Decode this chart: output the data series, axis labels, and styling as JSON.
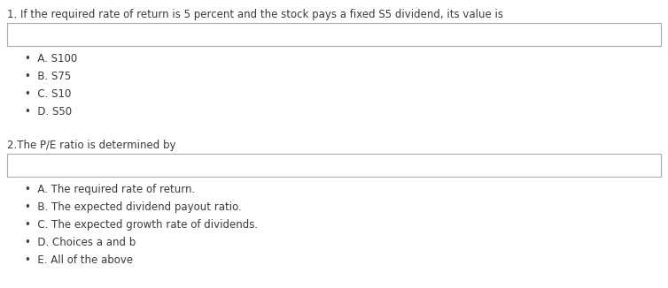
{
  "bg_color": "#ffffff",
  "text_color": "#3a3a3a",
  "box_color": "#ffffff",
  "box_edge_color": "#aaaaaa",
  "q1_text": "1. If the required rate of return is 5 percent and the stock pays a fixed S5 dividend, its value is",
  "q1_options": [
    "A. S100",
    "B. S75",
    "C. S10",
    "D. S50"
  ],
  "q2_text": "2.The P/E ratio is determined by",
  "q2_options": [
    "A. The required rate of return.",
    "B. The expected dividend payout ratio.",
    "C. The expected growth rate of dividends.",
    "D. Choices a and b",
    "E. All of the above"
  ],
  "font_size_question": 8.5,
  "font_size_option": 8.5,
  "bullet": "•",
  "fig_width": 7.54,
  "fig_height": 3.26,
  "dpi": 100
}
